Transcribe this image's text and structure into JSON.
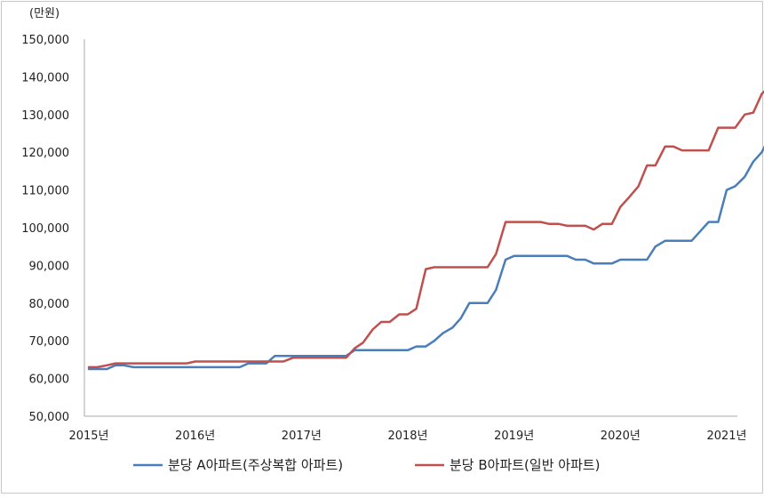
{
  "chart_data": {
    "type": "line",
    "unit_label": "(만원)",
    "ylim": [
      50000,
      150000
    ],
    "y_ticks": [
      50000,
      60000,
      70000,
      80000,
      90000,
      100000,
      110000,
      120000,
      130000,
      140000,
      150000
    ],
    "y_tick_labels": [
      "50,000",
      "60,000",
      "70,000",
      "80,000",
      "90,000",
      "100,000",
      "110,000",
      "120,000",
      "130,000",
      "140,000",
      "150,000"
    ],
    "x_tick_labels": [
      "2015년",
      "2016년",
      "2017년",
      "2018년",
      "2019년",
      "2020년",
      "2021년"
    ],
    "grid": false,
    "legend_position": "bottom",
    "series": [
      {
        "name": "분당 A아파트(주상복합 아파트)",
        "color": "#4a7ebb",
        "points": [
          [
            2015.0,
            62500
          ],
          [
            2015.08,
            62500
          ],
          [
            2015.17,
            62500
          ],
          [
            2015.25,
            63500
          ],
          [
            2015.33,
            63500
          ],
          [
            2015.42,
            63000
          ],
          [
            2015.5,
            63000
          ],
          [
            2015.58,
            63000
          ],
          [
            2015.67,
            63000
          ],
          [
            2015.75,
            63000
          ],
          [
            2015.83,
            63000
          ],
          [
            2015.92,
            63000
          ],
          [
            2016.0,
            63000
          ],
          [
            2016.08,
            63000
          ],
          [
            2016.17,
            63000
          ],
          [
            2016.25,
            63000
          ],
          [
            2016.33,
            63000
          ],
          [
            2016.42,
            63000
          ],
          [
            2016.5,
            64000
          ],
          [
            2016.58,
            64000
          ],
          [
            2016.67,
            64000
          ],
          [
            2016.75,
            66000
          ],
          [
            2016.83,
            66000
          ],
          [
            2016.92,
            66000
          ],
          [
            2017.0,
            66000
          ],
          [
            2017.08,
            66000
          ],
          [
            2017.17,
            66000
          ],
          [
            2017.25,
            66000
          ],
          [
            2017.33,
            66000
          ],
          [
            2017.42,
            66000
          ],
          [
            2017.5,
            67500
          ],
          [
            2017.58,
            67500
          ],
          [
            2017.67,
            67500
          ],
          [
            2017.75,
            67500
          ],
          [
            2017.83,
            67500
          ],
          [
            2017.92,
            67500
          ],
          [
            2018.0,
            67500
          ],
          [
            2018.08,
            68500
          ],
          [
            2018.17,
            68500
          ],
          [
            2018.25,
            70000
          ],
          [
            2018.33,
            72000
          ],
          [
            2018.42,
            73500
          ],
          [
            2018.5,
            76000
          ],
          [
            2018.58,
            80000
          ],
          [
            2018.67,
            80000
          ],
          [
            2018.75,
            80000
          ],
          [
            2018.83,
            83500
          ],
          [
            2018.92,
            91500
          ],
          [
            2019.0,
            92500
          ],
          [
            2019.08,
            92500
          ],
          [
            2019.17,
            92500
          ],
          [
            2019.25,
            92500
          ],
          [
            2019.33,
            92500
          ],
          [
            2019.42,
            92500
          ],
          [
            2019.5,
            92500
          ],
          [
            2019.58,
            91500
          ],
          [
            2019.67,
            91500
          ],
          [
            2019.75,
            90500
          ],
          [
            2019.83,
            90500
          ],
          [
            2019.92,
            90500
          ],
          [
            2020.0,
            91500
          ],
          [
            2020.08,
            91500
          ],
          [
            2020.17,
            91500
          ],
          [
            2020.25,
            91500
          ],
          [
            2020.33,
            95000
          ],
          [
            2020.42,
            96500
          ],
          [
            2020.5,
            96500
          ],
          [
            2020.58,
            96500
          ],
          [
            2020.67,
            96500
          ],
          [
            2020.75,
            99000
          ],
          [
            2020.83,
            101500
          ],
          [
            2020.92,
            101500
          ],
          [
            2021.0,
            110000
          ],
          [
            2021.08,
            111000
          ],
          [
            2021.17,
            113500
          ],
          [
            2021.25,
            117500
          ],
          [
            2021.33,
            120000
          ],
          [
            2021.42,
            125000
          ]
        ]
      },
      {
        "name": "분당 B아파트(일반 아파트)",
        "color": "#c0504d",
        "points": [
          [
            2015.0,
            63000
          ],
          [
            2015.08,
            63000
          ],
          [
            2015.17,
            63500
          ],
          [
            2015.25,
            64000
          ],
          [
            2015.33,
            64000
          ],
          [
            2015.42,
            64000
          ],
          [
            2015.5,
            64000
          ],
          [
            2015.58,
            64000
          ],
          [
            2015.67,
            64000
          ],
          [
            2015.75,
            64000
          ],
          [
            2015.83,
            64000
          ],
          [
            2015.92,
            64000
          ],
          [
            2016.0,
            64500
          ],
          [
            2016.08,
            64500
          ],
          [
            2016.17,
            64500
          ],
          [
            2016.25,
            64500
          ],
          [
            2016.33,
            64500
          ],
          [
            2016.42,
            64500
          ],
          [
            2016.5,
            64500
          ],
          [
            2016.58,
            64500
          ],
          [
            2016.67,
            64500
          ],
          [
            2016.75,
            64500
          ],
          [
            2016.83,
            64500
          ],
          [
            2016.92,
            65500
          ],
          [
            2017.0,
            65500
          ],
          [
            2017.08,
            65500
          ],
          [
            2017.17,
            65500
          ],
          [
            2017.25,
            65500
          ],
          [
            2017.33,
            65500
          ],
          [
            2017.42,
            65500
          ],
          [
            2017.5,
            68000
          ],
          [
            2017.58,
            69500
          ],
          [
            2017.67,
            73000
          ],
          [
            2017.75,
            75000
          ],
          [
            2017.83,
            75000
          ],
          [
            2017.92,
            77000
          ],
          [
            2018.0,
            77000
          ],
          [
            2018.08,
            78500
          ],
          [
            2018.17,
            89000
          ],
          [
            2018.25,
            89500
          ],
          [
            2018.33,
            89500
          ],
          [
            2018.42,
            89500
          ],
          [
            2018.5,
            89500
          ],
          [
            2018.58,
            89500
          ],
          [
            2018.67,
            89500
          ],
          [
            2018.75,
            89500
          ],
          [
            2018.83,
            93000
          ],
          [
            2018.92,
            101500
          ],
          [
            2019.0,
            101500
          ],
          [
            2019.08,
            101500
          ],
          [
            2019.17,
            101500
          ],
          [
            2019.25,
            101500
          ],
          [
            2019.33,
            101000
          ],
          [
            2019.42,
            101000
          ],
          [
            2019.5,
            100500
          ],
          [
            2019.58,
            100500
          ],
          [
            2019.67,
            100500
          ],
          [
            2019.75,
            99500
          ],
          [
            2019.83,
            101000
          ],
          [
            2019.92,
            101000
          ],
          [
            2020.0,
            105500
          ],
          [
            2020.08,
            108000
          ],
          [
            2020.17,
            111000
          ],
          [
            2020.25,
            116500
          ],
          [
            2020.33,
            116500
          ],
          [
            2020.42,
            121500
          ],
          [
            2020.5,
            121500
          ],
          [
            2020.58,
            120500
          ],
          [
            2020.67,
            120500
          ],
          [
            2020.75,
            120500
          ],
          [
            2020.83,
            120500
          ],
          [
            2020.92,
            126500
          ],
          [
            2021.0,
            126500
          ],
          [
            2021.08,
            126500
          ],
          [
            2021.17,
            130000
          ],
          [
            2021.25,
            130500
          ],
          [
            2021.33,
            135500
          ],
          [
            2021.42,
            138000
          ],
          [
            2021.5,
            139000
          ]
        ]
      }
    ]
  }
}
